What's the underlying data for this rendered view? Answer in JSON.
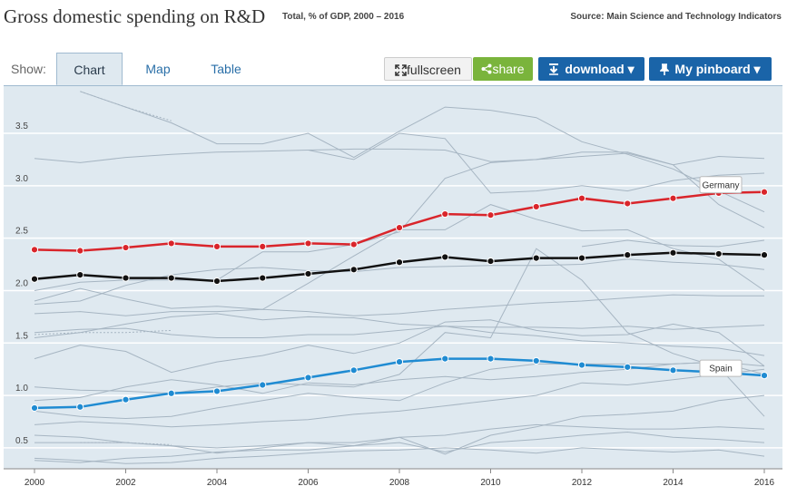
{
  "header": {
    "title": "Gross domestic spending on R&D",
    "subtitle": "Total, % of GDP, 2000 – 2016",
    "source": "Source: Main Science and Technology Indicators"
  },
  "toolbar": {
    "show_label": "Show:",
    "tabs": [
      {
        "label": "Chart",
        "active": true
      },
      {
        "label": "Map",
        "active": false
      },
      {
        "label": "Table",
        "active": false
      }
    ],
    "fullscreen_label": "fullscreen",
    "share_label": "share",
    "download_label": "download ▾",
    "pinboard_label": "My pinboard ▾"
  },
  "colors": {
    "plot_bg": "#dfe9f0",
    "grid": "#ffffff",
    "background_lines": "#a6b5c2",
    "highlight_germany": "#d9252b",
    "highlight_spain": "#1f8bd2",
    "highlight_average": "#111111",
    "accent_blue": "#1a64a8",
    "accent_green": "#7ab43c"
  },
  "icons": {
    "fullscreen": "expand-icon",
    "share": "share-icon",
    "download": "download-icon",
    "pinboard": "pin-icon"
  },
  "chart_data": {
    "type": "line",
    "x": [
      2000,
      2001,
      2002,
      2003,
      2004,
      2005,
      2006,
      2007,
      2008,
      2009,
      2010,
      2011,
      2012,
      2013,
      2014,
      2015,
      2016
    ],
    "x_ticks": [
      2000,
      2002,
      2004,
      2006,
      2008,
      2010,
      2012,
      2014,
      2016
    ],
    "y_ticks": [
      0.5,
      1.0,
      1.5,
      2.0,
      2.5,
      3.0,
      3.5
    ],
    "ylim": [
      0.3,
      3.95
    ],
    "xlim": [
      2000,
      2016
    ],
    "grid": true,
    "highlighted_series": [
      {
        "name": "Germany",
        "color": "#d9252b",
        "label": "Germany",
        "values": [
          2.39,
          2.38,
          2.41,
          2.45,
          2.42,
          2.42,
          2.45,
          2.44,
          2.6,
          2.73,
          2.72,
          2.8,
          2.88,
          2.83,
          2.88,
          2.93,
          2.94
        ]
      },
      {
        "name": "",
        "color": "#111111",
        "label": "",
        "values": [
          2.11,
          2.15,
          2.12,
          2.12,
          2.09,
          2.12,
          2.16,
          2.2,
          2.27,
          2.32,
          2.28,
          2.31,
          2.31,
          2.34,
          2.36,
          2.35,
          2.34
        ]
      },
      {
        "name": "Spain",
        "color": "#1f8bd2",
        "label": "Spain",
        "values": [
          0.88,
          0.89,
          0.96,
          1.02,
          1.04,
          1.1,
          1.17,
          1.24,
          1.32,
          1.35,
          1.35,
          1.33,
          1.29,
          1.27,
          1.24,
          1.22,
          1.19
        ]
      }
    ],
    "background_series": [
      {
        "values": [
          3.26,
          3.22,
          3.27,
          3.3,
          3.32,
          3.33,
          3.34,
          3.35,
          3.35,
          3.34,
          3.23,
          3.25,
          3.28,
          3.31,
          3.2,
          3.28,
          3.26
        ]
      },
      {
        "values": [
          null,
          3.9,
          3.75,
          3.6,
          3.4,
          3.4,
          3.5,
          3.27,
          3.52,
          3.75,
          3.72,
          3.65,
          3.42,
          3.3,
          3.16,
          2.95,
          2.75
        ]
      },
      {
        "values": [
          null,
          3.9,
          3.75,
          3.62,
          null,
          null,
          null,
          null,
          null,
          null,
          null,
          null,
          null,
          null,
          null,
          null,
          null
        ],
        "dashed": true
      },
      {
        "values": [
          null,
          null,
          null,
          null,
          null,
          null,
          3.34,
          3.25,
          3.5,
          3.45,
          2.93,
          2.95,
          3.0,
          2.95,
          3.05,
          3.1,
          3.12
        ]
      },
      {
        "values": [
          2.0,
          2.08,
          2.1,
          2.1,
          2.1,
          2.37,
          2.37,
          2.44,
          2.56,
          3.07,
          3.22,
          3.25,
          3.32,
          3.32,
          3.2,
          2.82,
          2.6
        ]
      },
      {
        "values": [
          1.9,
          2.02,
          1.92,
          1.83,
          1.85,
          1.82,
          2.07,
          2.33,
          2.58,
          2.58,
          2.82,
          2.68,
          2.57,
          2.58,
          2.4,
          2.3,
          2.0
        ]
      },
      {
        "values": [
          null,
          null,
          null,
          null,
          null,
          null,
          null,
          null,
          null,
          null,
          null,
          null,
          2.42,
          2.48,
          2.43,
          2.42,
          2.48
        ]
      },
      {
        "values": [
          1.55,
          1.6,
          1.68,
          1.75,
          1.78,
          1.72,
          1.75,
          1.74,
          1.68,
          1.66,
          1.6,
          1.57,
          1.52,
          1.5,
          1.47,
          1.45,
          1.38
        ]
      },
      {
        "values": [
          1.87,
          1.9,
          2.05,
          2.15,
          2.2,
          2.22,
          2.19,
          2.18,
          2.22,
          2.23,
          2.24,
          2.24,
          2.25,
          2.3,
          2.27,
          2.25,
          2.2
        ]
      },
      {
        "values": [
          1.78,
          1.8,
          1.76,
          1.8,
          1.8,
          1.82,
          1.8,
          1.76,
          1.78,
          1.82,
          1.85,
          1.88,
          1.9,
          1.93,
          1.96,
          1.95,
          1.95
        ]
      },
      {
        "values": [
          1.6,
          1.63,
          1.64,
          1.58,
          1.55,
          1.55,
          1.58,
          1.58,
          1.62,
          1.66,
          1.65,
          1.65,
          1.64,
          1.66,
          1.63,
          1.65,
          1.67
        ]
      },
      {
        "values": [
          1.35,
          1.48,
          1.42,
          1.22,
          1.32,
          1.38,
          1.48,
          1.4,
          1.5,
          1.7,
          1.72,
          1.62,
          1.57,
          1.58,
          1.68,
          1.6,
          1.28
        ]
      },
      {
        "values": [
          1.08,
          1.05,
          1.04,
          1.02,
          1.08,
          1.12,
          1.1,
          1.08,
          1.2,
          1.6,
          1.55,
          2.4,
          2.1,
          1.6,
          1.4,
          1.27,
          0.8
        ]
      },
      {
        "values": [
          0.95,
          0.98,
          1.08,
          1.15,
          1.1,
          1.02,
          1.12,
          1.1,
          1.15,
          1.18,
          1.15,
          1.18,
          1.22,
          1.25,
          1.3,
          1.32,
          1.28
        ]
      },
      {
        "values": [
          1.58,
          1.6,
          1.6,
          1.62,
          null,
          null,
          null,
          null,
          null,
          null,
          null,
          null,
          null,
          null,
          null,
          null,
          null
        ],
        "dashed": true
      },
      {
        "values": [
          0.85,
          0.8,
          0.78,
          0.8,
          0.88,
          0.95,
          1.02,
          0.98,
          0.95,
          1.12,
          1.25,
          1.3,
          1.3,
          1.3,
          1.3,
          1.32,
          1.2
        ]
      },
      {
        "values": [
          0.72,
          0.75,
          0.73,
          0.7,
          0.72,
          0.75,
          0.77,
          0.82,
          0.85,
          0.9,
          0.95,
          1.0,
          1.12,
          1.1,
          1.15,
          1.2,
          1.25
        ]
      },
      {
        "values": [
          0.62,
          0.6,
          0.55,
          0.52,
          0.5,
          0.52,
          0.55,
          0.55,
          0.6,
          0.44,
          0.62,
          0.7,
          0.8,
          0.82,
          0.85,
          0.95,
          1.0
        ]
      },
      {
        "values": [
          0.55,
          0.55,
          0.55,
          0.52,
          0.45,
          0.5,
          0.55,
          0.52,
          0.6,
          0.62,
          0.68,
          0.72,
          0.7,
          0.68,
          0.68,
          0.7,
          0.68
        ]
      },
      {
        "values": [
          0.38,
          0.36,
          0.4,
          0.42,
          0.46,
          0.48,
          0.48,
          0.52,
          0.55,
          0.46,
          0.55,
          0.58,
          0.62,
          0.65,
          0.6,
          0.58,
          0.55
        ]
      },
      {
        "values": [
          0.4,
          0.38,
          0.35,
          0.36,
          0.4,
          0.42,
          0.45,
          0.47,
          0.48,
          0.5,
          0.48,
          0.45,
          0.5,
          0.48,
          0.46,
          0.48,
          0.42
        ]
      },
      {
        "values": [
          null,
          0.55,
          0.55,
          0.53,
          null,
          null,
          null,
          null,
          null,
          null,
          null,
          null,
          null,
          null,
          null,
          null,
          null
        ],
        "dashed": true
      }
    ]
  }
}
